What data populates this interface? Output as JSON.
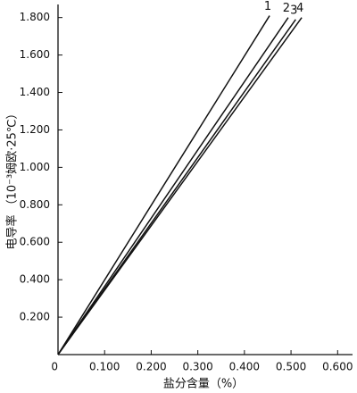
{
  "chart_data": {
    "type": "line",
    "x_label": "盐分含量（%）",
    "y_label": "电导率 （10⁻³姆欧·25℃）",
    "series": [
      {
        "name": "1",
        "color": "#111111",
        "x": [
          0,
          0.454
        ],
        "values": [
          0,
          1.81
        ]
      },
      {
        "name": "2",
        "color": "#111111",
        "x": [
          0,
          0.494
        ],
        "values": [
          0,
          1.8
        ]
      },
      {
        "name": "3",
        "color": "#111111",
        "x": [
          0,
          0.51
        ],
        "values": [
          0,
          1.79
        ]
      },
      {
        "name": "4",
        "color": "#111111",
        "x": [
          0,
          0.523
        ],
        "values": [
          0,
          1.8
        ]
      }
    ],
    "xlim": [
      0,
      0.632
    ],
    "ylim": [
      0,
      1.87
    ],
    "xticks": [
      0,
      {
        "value": 0.1,
        "label": "0.100"
      },
      {
        "value": 0.2,
        "label": "0.200"
      },
      {
        "value": 0.3,
        "label": "0.300"
      },
      {
        "value": 0.4,
        "label": "0.400"
      },
      {
        "value": 0.5,
        "label": "0.500"
      },
      {
        "value": 0.6,
        "label": "0.600"
      }
    ],
    "yticks": [
      {
        "value": 0.2,
        "label": "0.200"
      },
      {
        "value": 0.4,
        "label": "0.400"
      },
      {
        "value": 0.6,
        "label": "0.600"
      },
      {
        "value": 0.8,
        "label": "0.800"
      },
      {
        "value": 1.0,
        "label": "1.000"
      },
      {
        "value": 1.2,
        "label": "1.200"
      },
      {
        "value": 1.4,
        "label": "1.400"
      },
      {
        "value": 1.6,
        "label": "1.600"
      },
      {
        "value": 1.8,
        "label": "1.800"
      }
    ],
    "grid": false
  }
}
